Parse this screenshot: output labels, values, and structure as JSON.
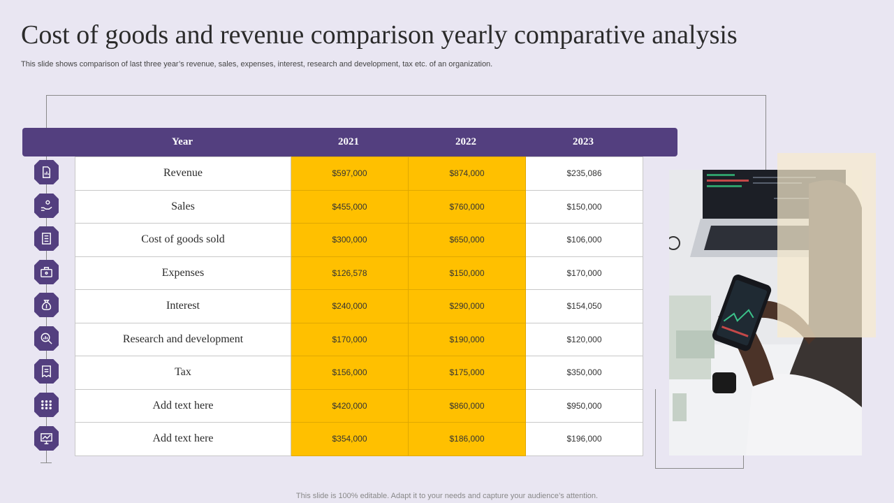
{
  "page": {
    "title": "Cost of goods and revenue comparison yearly comparative analysis",
    "subtitle": "This slide shows comparison of last three year’s revenue, sales, expenses, interest, research and development, tax etc. of an organization.",
    "footer": "This slide is 100% editable. Adapt it to your needs and capture your audience’s attention."
  },
  "colors": {
    "accent": "#533f7f",
    "highlight": "#ffc000",
    "background": "#e9e6f2"
  },
  "table": {
    "headers": [
      "Year",
      "2021",
      "2022",
      "2023"
    ],
    "rows": [
      {
        "label": "Revenue",
        "icon": "document-chart-icon",
        "values": [
          "$597,000",
          "$874,000",
          "$235,086"
        ]
      },
      {
        "label": "Sales",
        "icon": "hand-coins-icon",
        "values": [
          "$455,000",
          "$760,000",
          "$150,000"
        ]
      },
      {
        "label": "Cost of goods sold",
        "icon": "checklist-icon",
        "values": [
          "$300,000",
          "$650,000",
          "$106,000"
        ]
      },
      {
        "label": "Expenses",
        "icon": "briefcase-icon",
        "values": [
          "$126,578",
          "$150,000",
          "$170,000"
        ]
      },
      {
        "label": "Interest",
        "icon": "money-bag-icon",
        "values": [
          "$240,000",
          "$290,000",
          "$154,050"
        ]
      },
      {
        "label": "Research and development",
        "icon": "magnifier-chart-icon",
        "values": [
          "$170,000",
          "$190,000",
          "$120,000"
        ]
      },
      {
        "label": "Tax",
        "icon": "tax-receipt-icon",
        "values": [
          "$156,000",
          "$175,000",
          "$350,000"
        ]
      },
      {
        "label": "Add text here",
        "icon": "dots-grid-icon",
        "values": [
          "$420,000",
          "$860,000",
          "$950,000"
        ]
      },
      {
        "label": "Add text here",
        "icon": "presentation-chart-icon",
        "values": [
          "$354,000",
          "$186,000",
          "$196,000"
        ]
      }
    ]
  }
}
